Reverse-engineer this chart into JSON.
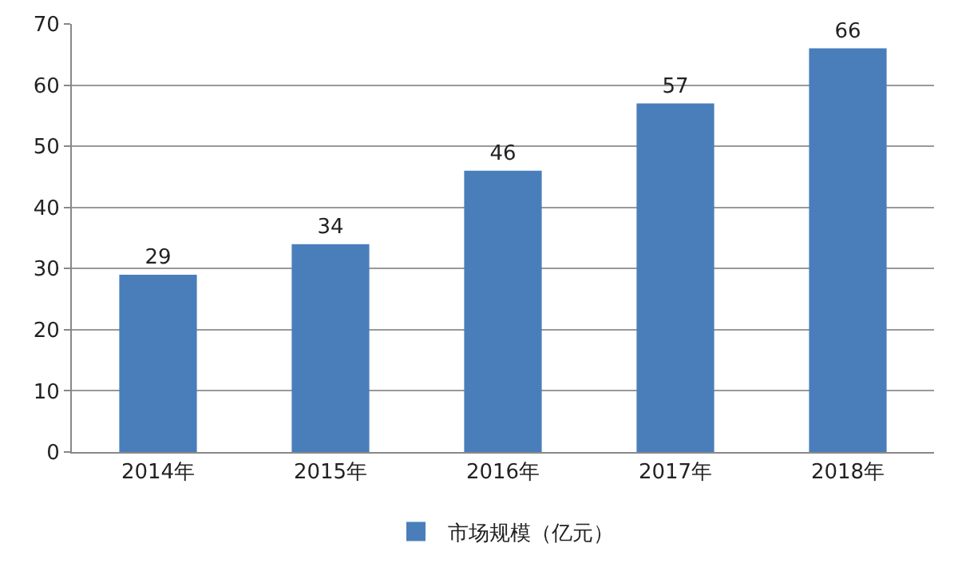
{
  "chart_data": {
    "type": "bar",
    "categories": [
      "2014年",
      "2015年",
      "2016年",
      "2017年",
      "2018年"
    ],
    "series": [
      {
        "name": "市场规模（亿元）",
        "color": "#4a7ebb",
        "values": [
          29,
          34,
          46,
          57,
          66
        ]
      }
    ],
    "ylim": [
      0,
      70
    ],
    "yticks": [
      0,
      10,
      20,
      30,
      40,
      50,
      60,
      70
    ],
    "grid": "y",
    "legend": "bottom",
    "data_labels": true
  }
}
